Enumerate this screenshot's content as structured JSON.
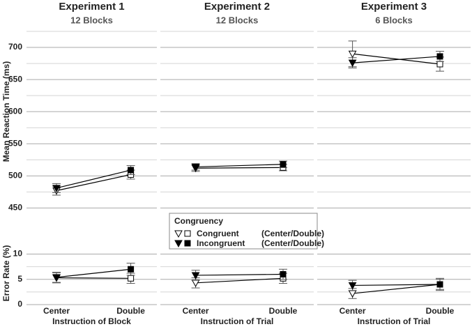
{
  "chart_data": [
    {
      "type": "line",
      "title": "Experiment 1",
      "subtitle": "12 Blocks",
      "categories": [
        "Center",
        "Double"
      ],
      "x_label": "Instruction of Block",
      "series": [
        {
          "name": "Congruent",
          "color": "#000000",
          "filled": false,
          "values": [
            477,
            502
          ],
          "errors": [
            7,
            7
          ]
        },
        {
          "name": "Incongruent",
          "color": "#000000",
          "filled": true,
          "values": [
            481,
            509
          ],
          "errors": [
            7,
            7
          ]
        }
      ],
      "error_rate_series": [
        {
          "name": "Congruent",
          "color": "#000000",
          "filled": false,
          "values": [
            5.3,
            5.2
          ],
          "errors": [
            1,
            1
          ]
        },
        {
          "name": "Incongruent",
          "color": "#000000",
          "filled": true,
          "values": [
            5.4,
            7.0
          ],
          "errors": [
            1,
            1.2
          ]
        }
      ]
    },
    {
      "type": "line",
      "title": "Experiment 2",
      "subtitle": "12 Blocks",
      "categories": [
        "Center",
        "Double"
      ],
      "x_label": "Instruction of Trial",
      "series": [
        {
          "name": "Congruent",
          "color": "#000000",
          "filled": false,
          "values": [
            512,
            513
          ],
          "errors": [
            5,
            5
          ]
        },
        {
          "name": "Incongruent",
          "color": "#000000",
          "filled": true,
          "values": [
            514,
            518
          ],
          "errors": [
            5,
            5
          ]
        }
      ],
      "error_rate_series": [
        {
          "name": "Congruent",
          "color": "#000000",
          "filled": false,
          "values": [
            4.3,
            5.2
          ],
          "errors": [
            1,
            1
          ]
        },
        {
          "name": "Incongruent",
          "color": "#000000",
          "filled": true,
          "values": [
            5.8,
            6.0
          ],
          "errors": [
            1,
            1
          ]
        }
      ]
    },
    {
      "type": "line",
      "title": "Experiment 3",
      "subtitle": "6 Blocks",
      "categories": [
        "Center",
        "Double"
      ],
      "x_label": "Instruction of Trial",
      "series": [
        {
          "name": "Congruent",
          "color": "#000000",
          "filled": false,
          "values": [
            690,
            674
          ],
          "errors": [
            20,
            11
          ]
        },
        {
          "name": "Incongruent",
          "color": "#000000",
          "filled": true,
          "values": [
            676,
            686
          ],
          "errors": [
            8,
            8
          ]
        }
      ],
      "error_rate_series": [
        {
          "name": "Congruent",
          "color": "#000000",
          "filled": false,
          "values": [
            2.2,
            4.0
          ],
          "errors": [
            1,
            1.2
          ]
        },
        {
          "name": "Incongruent",
          "color": "#000000",
          "filled": true,
          "values": [
            3.8,
            4.0
          ],
          "errors": [
            1,
            1
          ]
        }
      ]
    }
  ],
  "axes": {
    "rt": {
      "label": "Mean Reaction Time (ms)",
      "ylim": [
        445,
        725
      ],
      "yticks": [
        450,
        500,
        550,
        600,
        650,
        700
      ],
      "minor_yticks": [
        475,
        525,
        575,
        625,
        675,
        725
      ]
    },
    "error": {
      "label": "Error Rate (%)",
      "ylim": [
        0,
        12
      ],
      "yticks": [
        0,
        5,
        10
      ],
      "minor_yticks": [
        2.5,
        7.5
      ]
    }
  },
  "legend": {
    "title": "Congruency",
    "suffix": "(Center/Double)"
  }
}
